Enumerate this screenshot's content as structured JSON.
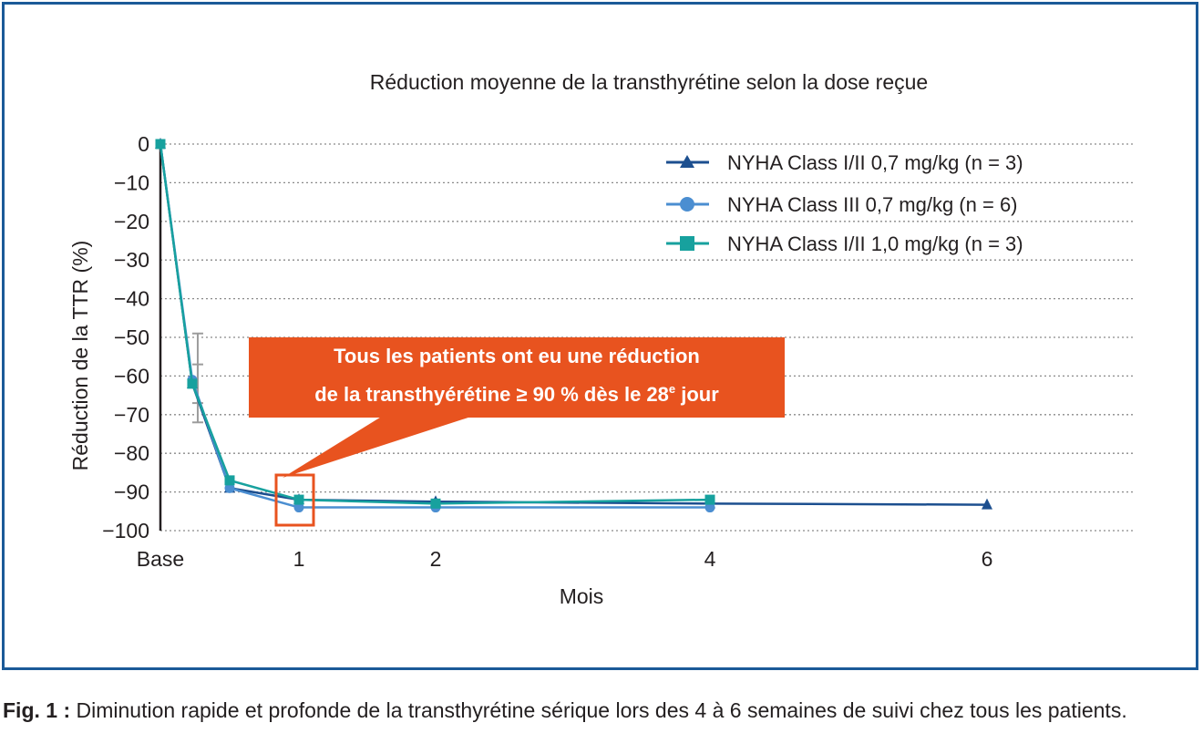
{
  "chart_data": {
    "type": "line",
    "title": "Réduction moyenne de la transthyrétine selon la dose reçue",
    "xlabel": "Mois",
    "ylabel": "Réduction de la TTR (%)",
    "ylim": [
      -100,
      0
    ],
    "y_ticks": [
      "0",
      "−10",
      "−20",
      "−30",
      "−40",
      "−50",
      "−60",
      "−70",
      "−80",
      "−90",
      "−100"
    ],
    "x_tick_labels": [
      {
        "label": "Base",
        "value": 0
      },
      {
        "label": "1",
        "value": 1
      },
      {
        "label": "2",
        "value": 2
      },
      {
        "label": "4",
        "value": 4
      },
      {
        "label": "6",
        "value": 6
      }
    ],
    "grid": "horizontal dotted",
    "legend_position": "top-right",
    "series": [
      {
        "name": "NYHA Class I/II 0,7 mg/kg (n = 3)",
        "color": "#1c4f8f",
        "marker": "triangle",
        "x": [
          0,
          0.23,
          0.5,
          1,
          2,
          4,
          6
        ],
        "y": [
          0,
          -62,
          -89,
          -92,
          -92.5,
          -93,
          -93.3
        ]
      },
      {
        "name": "NYHA Class III 0,7 mg/kg (n = 6)",
        "color": "#4b8ed1",
        "marker": "circle",
        "x": [
          0,
          0.23,
          0.5,
          1,
          2,
          4
        ],
        "y": [
          0,
          -61,
          -89,
          -94,
          -94,
          -94
        ]
      },
      {
        "name": "NYHA Class I/II 1,0 mg/kg (n = 3)",
        "color": "#17a19e",
        "marker": "square",
        "x": [
          0,
          0.23,
          0.5,
          1,
          2,
          4
        ],
        "y": [
          0,
          -62,
          -87,
          -92,
          -93,
          -92
        ]
      }
    ],
    "error_bars": [
      {
        "x": 0.23,
        "low": -67,
        "high": -57
      },
      {
        "x": 0.23,
        "low": -72,
        "high": -49
      }
    ],
    "callout": {
      "line1": "Tous les patients ont eu une réduction",
      "line2_main": "de la transthyérétine ≥ 90 % dès le 28",
      "line2_sup": "e",
      "line2_end": " jour",
      "color": "#e8531f"
    },
    "highlight_x": 1
  },
  "caption": {
    "label": "Fig. 1 :",
    "text": " Diminution rapide et profonde de la transthyrétine sérique lors des 4 à 6 semaines de suivi chez tous les patients."
  }
}
